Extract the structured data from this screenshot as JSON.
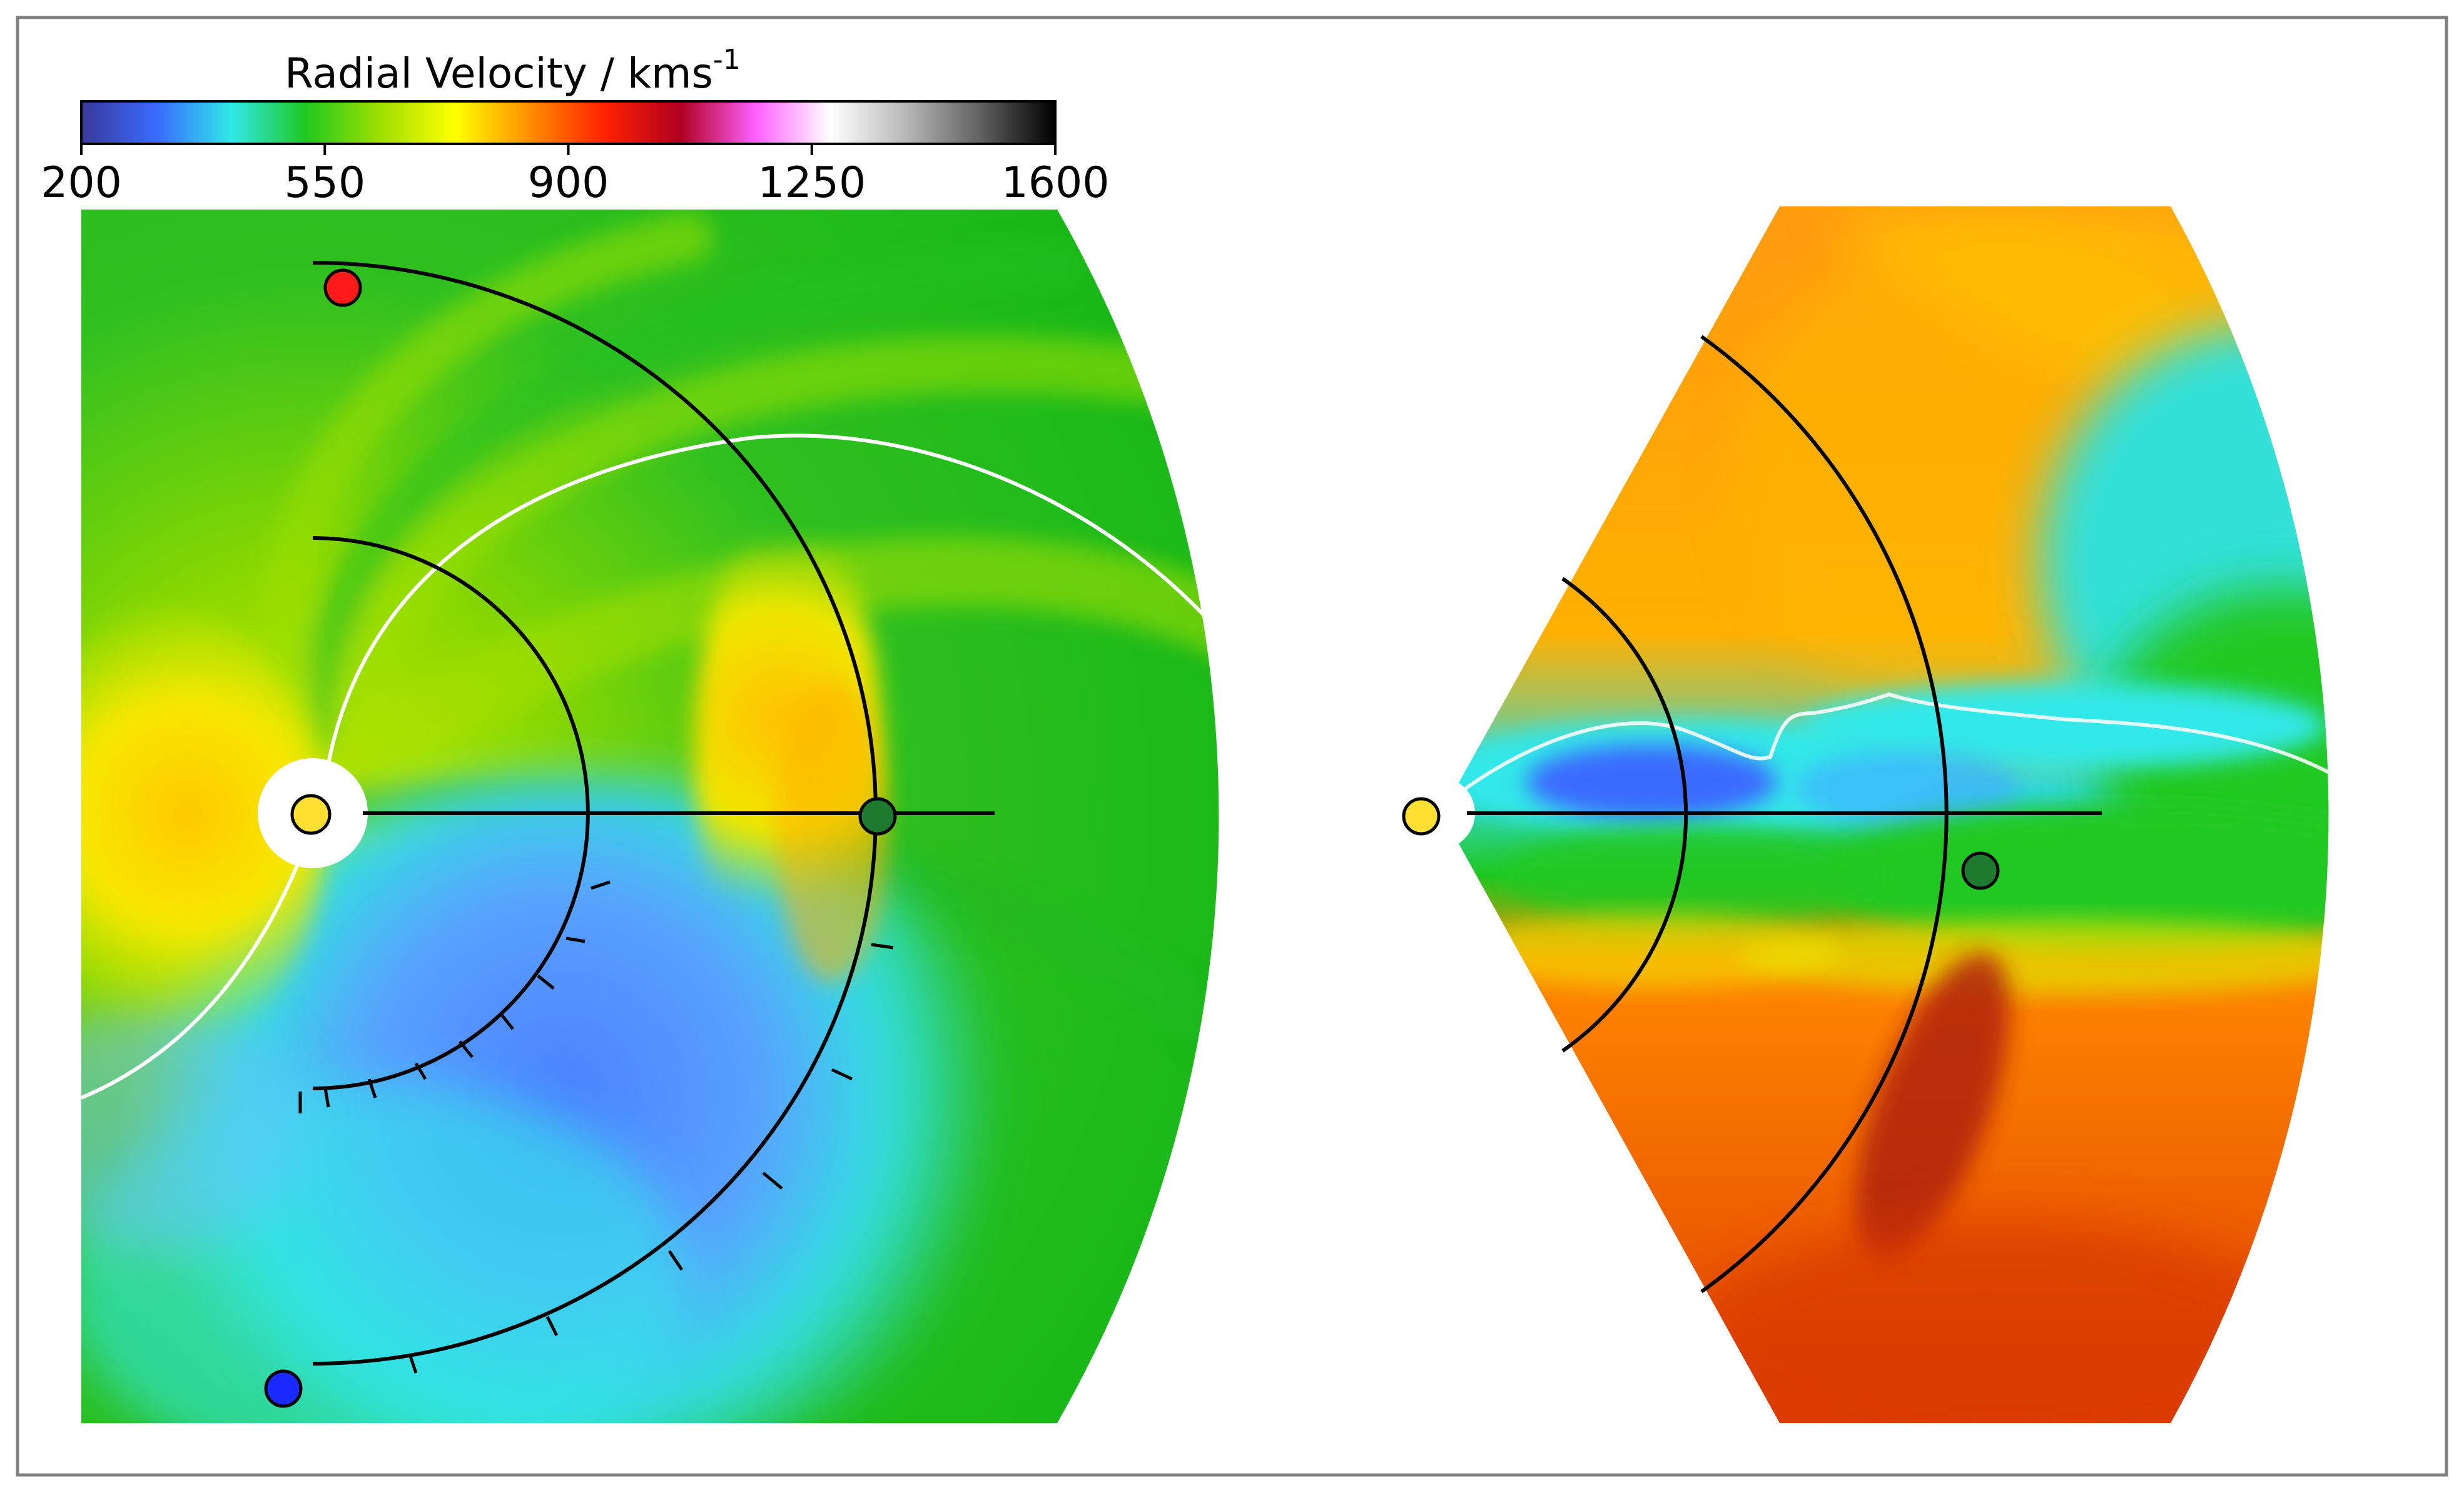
{
  "colorbar": {
    "title": "Radial Velocity / kms",
    "title_superscript": "-1",
    "tick_labels": [
      "200",
      "550",
      "900",
      "1250",
      "1600"
    ],
    "range": [
      200,
      1600
    ],
    "colors": [
      "#3a3a9a",
      "#3a6aff",
      "#30e8e8",
      "#20c820",
      "#a0e000",
      "#ffff00",
      "#ff8c00",
      "#ff2000",
      "#b00020",
      "#ff60ff",
      "#ffffff",
      "#b8b8b8",
      "#606060",
      "#000000"
    ]
  },
  "palette": {
    "background": "#ffffff",
    "frame": "#808080",
    "sun": "#ffe033",
    "earth": "#1e7a2e",
    "stereo_a": "#ff1a1a",
    "stereo_b": "#1a2aff",
    "current_sheet": "#ffffff",
    "orbit_lines": "#000000"
  },
  "panels": [
    {
      "id": "ecliptic-plane-view",
      "dominant_colors": [
        "#20c820",
        "#a0e000",
        "#30e8e8",
        "#3a6aff",
        "#ffe000"
      ]
    },
    {
      "id": "meridional-plane-view",
      "dominant_colors": [
        "#ff8c00",
        "#e84800",
        "#20c820",
        "#30e8e8",
        "#3a6aff"
      ]
    }
  ]
}
